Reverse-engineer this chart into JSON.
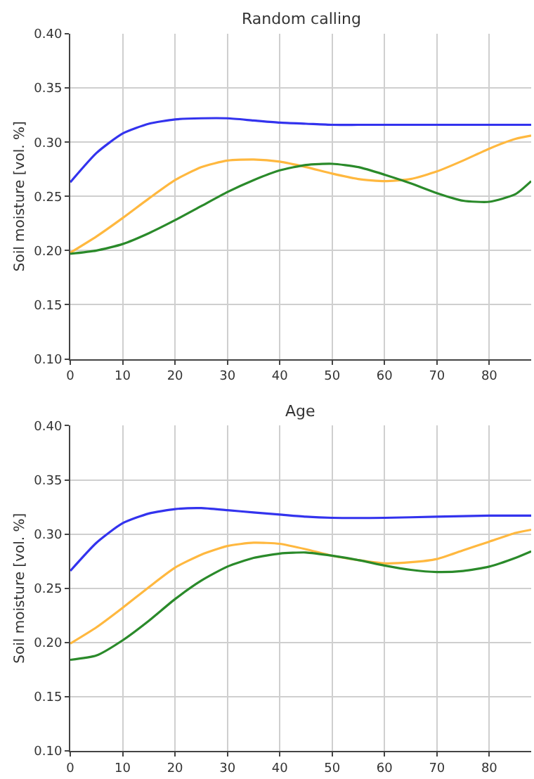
{
  "chart_data": [
    {
      "type": "line",
      "title": "Random calling",
      "ylabel": "Soil moisture [vol. %]",
      "xlim": [
        0,
        88
      ],
      "xticks": [
        0,
        10,
        20,
        30,
        40,
        50,
        60,
        70,
        80
      ],
      "ylim": [
        0.1,
        0.4
      ],
      "yticks": [
        {
          "value": 0.1,
          "label": "0.10"
        },
        {
          "value": 0.15,
          "label": "0.15"
        },
        {
          "value": 0.2,
          "label": "0.20"
        },
        {
          "value": 0.25,
          "label": "0.25"
        },
        {
          "value": 0.3,
          "label": "0.30"
        },
        {
          "value": 0.35,
          "label": "0.35"
        },
        {
          "value": 0.4,
          "label": "0.40"
        }
      ],
      "grid": true,
      "marker": "none",
      "line_style": "solid",
      "series": [
        {
          "color": "#3333ee",
          "x": [
            0,
            5,
            10,
            15,
            20,
            25,
            30,
            35,
            40,
            45,
            50,
            55,
            60,
            70,
            80,
            88
          ],
          "values": [
            0.263,
            0.29,
            0.308,
            0.317,
            0.321,
            0.322,
            0.322,
            0.32,
            0.318,
            0.317,
            0.316,
            0.316,
            0.316,
            0.316,
            0.316,
            0.316
          ]
        },
        {
          "color": "#ffb83f",
          "x": [
            0,
            5,
            10,
            15,
            20,
            25,
            30,
            35,
            40,
            45,
            50,
            55,
            60,
            65,
            70,
            75,
            80,
            85,
            88
          ],
          "values": [
            0.198,
            0.213,
            0.23,
            0.248,
            0.265,
            0.277,
            0.283,
            0.284,
            0.282,
            0.277,
            0.271,
            0.266,
            0.264,
            0.266,
            0.273,
            0.283,
            0.294,
            0.303,
            0.306
          ]
        },
        {
          "color": "#2a8a2a",
          "x": [
            0,
            5,
            10,
            15,
            20,
            25,
            30,
            35,
            40,
            45,
            50,
            55,
            60,
            65,
            70,
            75,
            80,
            85,
            88
          ],
          "values": [
            0.197,
            0.2,
            0.206,
            0.216,
            0.228,
            0.241,
            0.254,
            0.265,
            0.274,
            0.279,
            0.28,
            0.277,
            0.27,
            0.262,
            0.253,
            0.246,
            0.245,
            0.252,
            0.264
          ]
        }
      ]
    },
    {
      "type": "line",
      "title": "Age",
      "ylabel": "Soil moisture [vol. %]",
      "xlim": [
        0,
        88
      ],
      "xticks": [
        0,
        10,
        20,
        30,
        40,
        50,
        60,
        70,
        80
      ],
      "ylim": [
        0.1,
        0.4
      ],
      "yticks": [
        {
          "value": 0.1,
          "label": "0.10"
        },
        {
          "value": 0.15,
          "label": "0.15"
        },
        {
          "value": 0.2,
          "label": "0.20"
        },
        {
          "value": 0.25,
          "label": "0.25"
        },
        {
          "value": 0.3,
          "label": "0.30"
        },
        {
          "value": 0.35,
          "label": "0.35"
        },
        {
          "value": 0.4,
          "label": "0.40"
        }
      ],
      "grid": true,
      "marker": "none",
      "line_style": "solid",
      "series": [
        {
          "color": "#3333ee",
          "x": [
            0,
            5,
            10,
            15,
            20,
            25,
            30,
            35,
            40,
            45,
            50,
            60,
            70,
            80,
            88
          ],
          "values": [
            0.266,
            0.292,
            0.31,
            0.319,
            0.323,
            0.324,
            0.322,
            0.32,
            0.318,
            0.316,
            0.315,
            0.315,
            0.316,
            0.317,
            0.317
          ]
        },
        {
          "color": "#ffb83f",
          "x": [
            0,
            5,
            10,
            15,
            20,
            25,
            30,
            35,
            40,
            45,
            50,
            55,
            60,
            65,
            70,
            75,
            80,
            85,
            88
          ],
          "values": [
            0.199,
            0.214,
            0.232,
            0.251,
            0.269,
            0.281,
            0.289,
            0.292,
            0.291,
            0.286,
            0.28,
            0.276,
            0.273,
            0.274,
            0.277,
            0.285,
            0.293,
            0.301,
            0.304
          ]
        },
        {
          "color": "#2a8a2a",
          "x": [
            0,
            5,
            10,
            15,
            20,
            25,
            30,
            35,
            40,
            45,
            50,
            55,
            60,
            65,
            70,
            75,
            80,
            85,
            88
          ],
          "values": [
            0.184,
            0.188,
            0.202,
            0.22,
            0.24,
            0.257,
            0.27,
            0.278,
            0.282,
            0.283,
            0.28,
            0.276,
            0.271,
            0.267,
            0.265,
            0.266,
            0.27,
            0.278,
            0.284
          ]
        }
      ]
    }
  ]
}
